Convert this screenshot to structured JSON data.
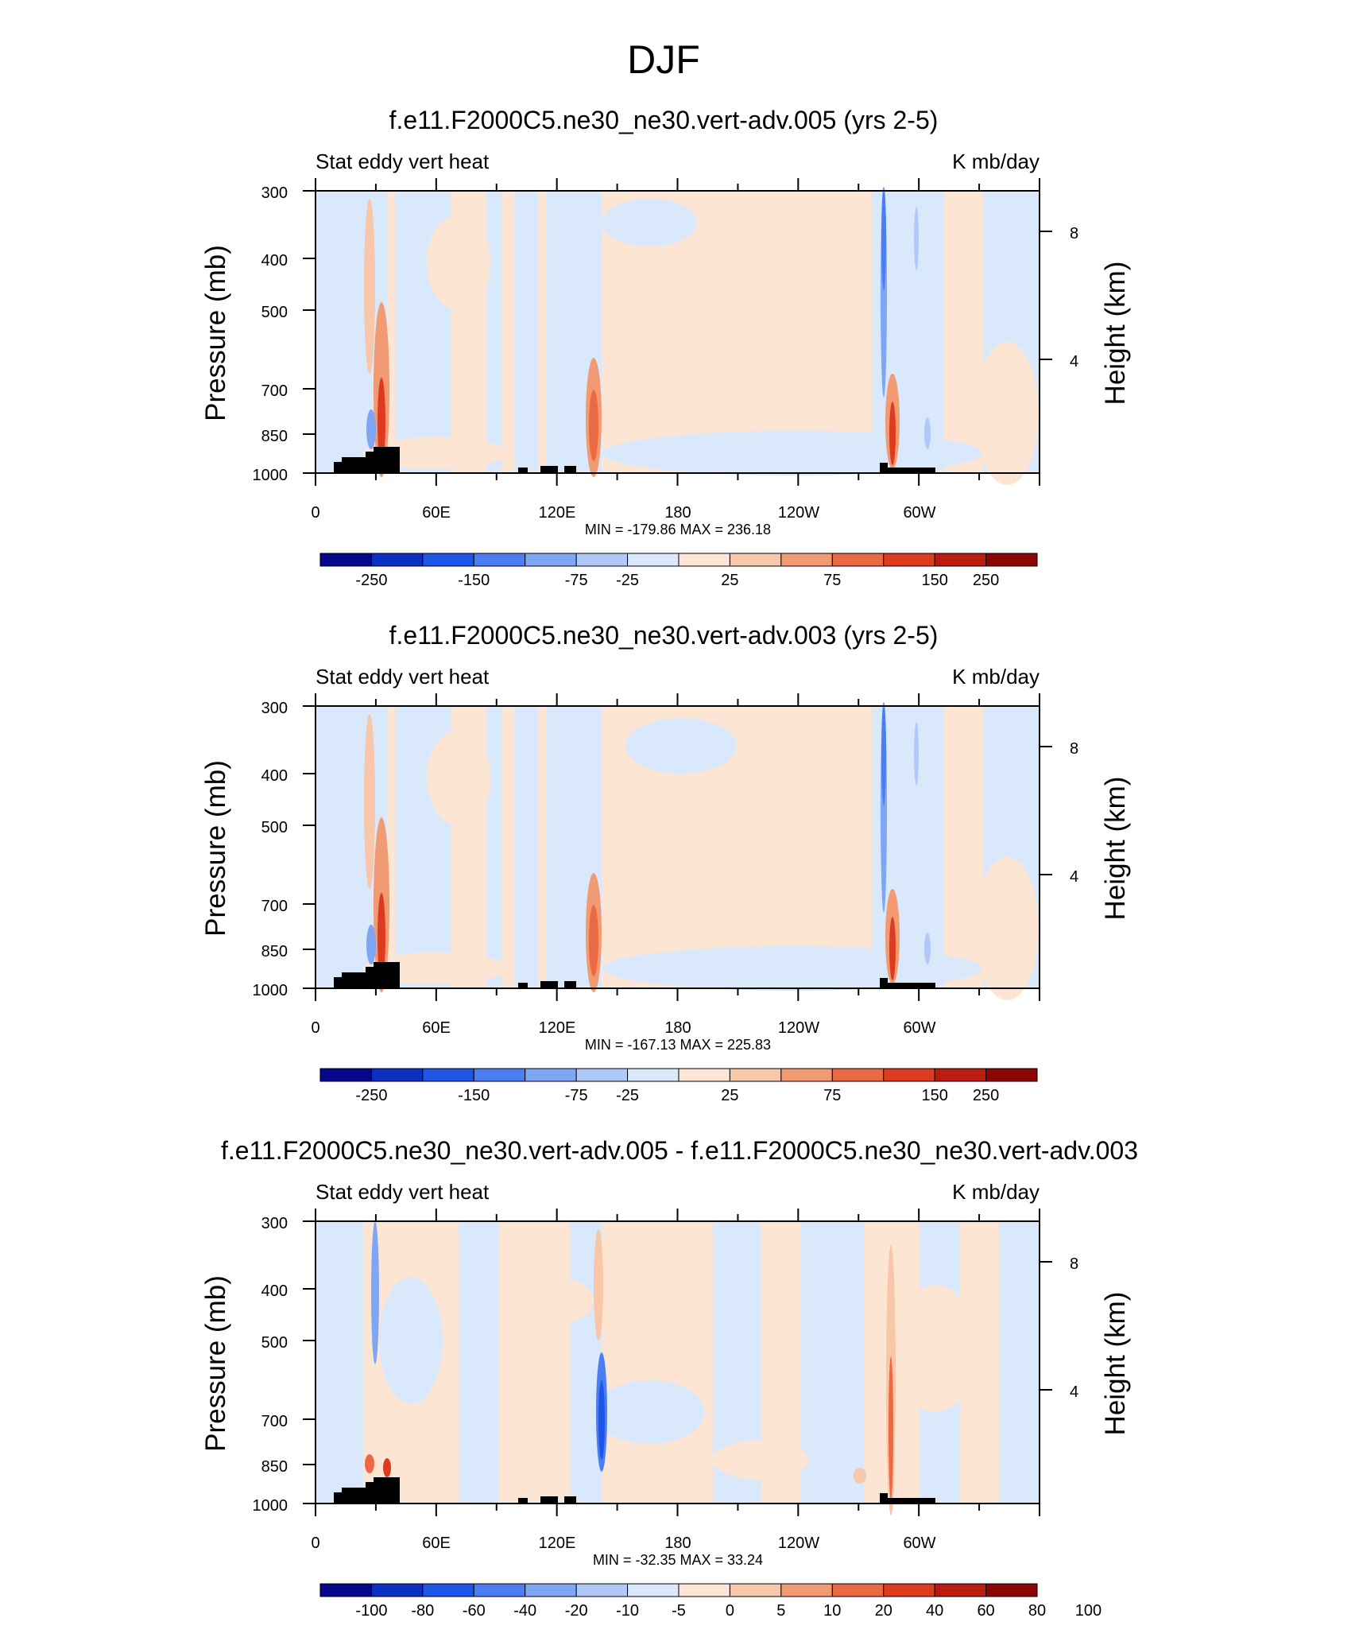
{
  "figure": {
    "title": "DJF"
  },
  "colors": {
    "neg": [
      "#08088f",
      "#0c2fc2",
      "#1f55e6",
      "#4a7ef2",
      "#7fa6f5",
      "#b0c9f8",
      "#dae8fb"
    ],
    "pos": [
      "#fde5d3",
      "#f8c6a8",
      "#f29a72",
      "#eb6a43",
      "#dc3b20",
      "#bc1b10",
      "#8c0404"
    ],
    "terrain": "#000000"
  },
  "chart_data": [
    {
      "type": "heatmap",
      "title": "f.e11.F2000C5.ne30_ne30.vert-adv.005 (yrs 2-5)",
      "left_label": "Stat eddy vert heat",
      "right_label": "K mb/day",
      "ylabel": "Pressure (mb)",
      "y2label": "Height (km)",
      "x_ticks": [
        "0",
        "60E",
        "120E",
        "180",
        "120W",
        "60W"
      ],
      "y_ticks": [
        "300",
        "400",
        "500",
        "700",
        "850",
        "1000"
      ],
      "y2_ticks": [
        "8",
        "4"
      ],
      "min_max": "MIN = -179.86  MAX = 236.18",
      "colorbar_labels": [
        "-250",
        "-150",
        "-75",
        "-25",
        "25",
        "75",
        "150",
        "250"
      ],
      "variant": "full"
    },
    {
      "type": "heatmap",
      "title": "f.e11.F2000C5.ne30_ne30.vert-adv.003 (yrs 2-5)",
      "left_label": "Stat eddy vert heat",
      "right_label": "K mb/day",
      "ylabel": "Pressure (mb)",
      "y2label": "Height (km)",
      "x_ticks": [
        "0",
        "60E",
        "120E",
        "180",
        "120W",
        "60W"
      ],
      "y_ticks": [
        "300",
        "400",
        "500",
        "700",
        "850",
        "1000"
      ],
      "y2_ticks": [
        "8",
        "4"
      ],
      "min_max": "MIN = -167.13  MAX = 225.83",
      "colorbar_labels": [
        "-250",
        "-150",
        "-75",
        "-25",
        "25",
        "75",
        "150",
        "250"
      ],
      "variant": "full"
    },
    {
      "type": "heatmap",
      "title": "f.e11.F2000C5.ne30_ne30.vert-adv.005 - f.e11.F2000C5.ne30_ne30.vert-adv.003",
      "left_label": "Stat eddy vert heat",
      "right_label": "K mb/day",
      "ylabel": "Pressure (mb)",
      "y2label": "Height (km)",
      "x_ticks": [
        "0",
        "60E",
        "120E",
        "180",
        "120W",
        "60W"
      ],
      "y_ticks": [
        "300",
        "400",
        "500",
        "700",
        "850",
        "1000"
      ],
      "y2_ticks": [
        "8",
        "4"
      ],
      "min_max": "MIN = -32.35  MAX =  33.24",
      "colorbar_labels": [
        "-100",
        "-80",
        "-60",
        "-40",
        "-20",
        "-10",
        "-5",
        "0",
        "5",
        "10",
        "20",
        "40",
        "60",
        "80",
        "100"
      ],
      "variant": "diff"
    }
  ]
}
